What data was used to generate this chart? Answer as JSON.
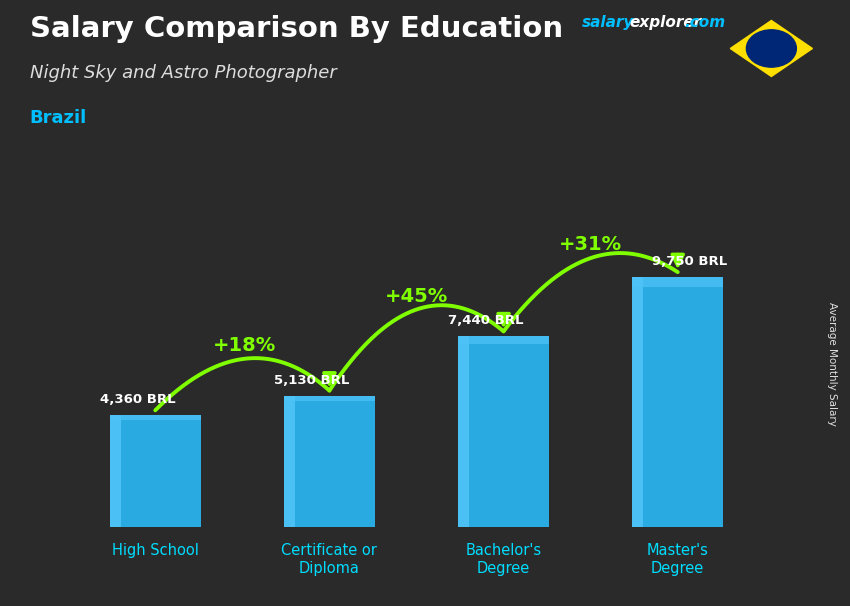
{
  "title": "Salary Comparison By Education",
  "subtitle": "Night Sky and Astro Photographer",
  "country": "Brazil",
  "ylabel": "Average Monthly Salary",
  "categories": [
    "High School",
    "Certificate or\nDiploma",
    "Bachelor's\nDegree",
    "Master's\nDegree"
  ],
  "values": [
    4360,
    5130,
    7440,
    9750
  ],
  "value_labels": [
    "4,360 BRL",
    "5,130 BRL",
    "7,440 BRL",
    "9,750 BRL"
  ],
  "pct_labels": [
    "+18%",
    "+45%",
    "+31%"
  ],
  "bar_color": "#29ABE2",
  "bar_color_light": "#4FC3F7",
  "bar_color_dark": "#0288D1",
  "pct_color": "#7FFF00",
  "title_color": "#FFFFFF",
  "subtitle_color": "#DDDDDD",
  "country_color": "#00BFFF",
  "value_color": "#FFFFFF",
  "xtick_color": "#00DDFF",
  "background_color": "#2A2A2A",
  "brand_color_salary": "#00BFFF",
  "brand_color_explorer": "#FFFFFF",
  "brand_color_com": "#00BFFF",
  "ylim": [
    0,
    13000
  ],
  "flag_green": "#009B3A",
  "flag_yellow": "#FEDF00",
  "flag_blue": "#002776"
}
